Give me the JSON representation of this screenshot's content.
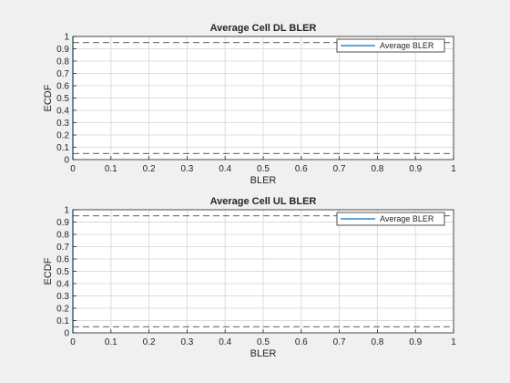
{
  "chart_data": [
    {
      "type": "line",
      "title": "Average Cell DL BLER",
      "xlabel": "BLER",
      "ylabel": "ECDF",
      "xlim": [
        0,
        1
      ],
      "ylim": [
        0,
        1
      ],
      "xticks": [
        "0",
        "0.1",
        "0.2",
        "0.3",
        "0.4",
        "0.5",
        "0.6",
        "0.7",
        "0.8",
        "0.9",
        "1"
      ],
      "yticks": [
        "0",
        "0.1",
        "0.2",
        "0.3",
        "0.4",
        "0.5",
        "0.6",
        "0.7",
        "0.8",
        "0.9",
        "1"
      ],
      "grid": true,
      "legend_position": "top-right",
      "series": [
        {
          "name": "Average BLER",
          "color": "#0072bd",
          "x": [
            0,
            0
          ],
          "y": [
            0,
            1
          ]
        }
      ],
      "reference_lines": [
        {
          "y": 0.05,
          "style": "dashed",
          "color": "#262626"
        },
        {
          "y": 0.95,
          "style": "dashed",
          "color": "#262626"
        }
      ]
    },
    {
      "type": "line",
      "title": "Average Cell UL BLER",
      "xlabel": "BLER",
      "ylabel": "ECDF",
      "xlim": [
        0,
        1
      ],
      "ylim": [
        0,
        1
      ],
      "xticks": [
        "0",
        "0.1",
        "0.2",
        "0.3",
        "0.4",
        "0.5",
        "0.6",
        "0.7",
        "0.8",
        "0.9",
        "1"
      ],
      "yticks": [
        "0",
        "0.1",
        "0.2",
        "0.3",
        "0.4",
        "0.5",
        "0.6",
        "0.7",
        "0.8",
        "0.9",
        "1"
      ],
      "grid": true,
      "legend_position": "top-right",
      "series": [
        {
          "name": "Average BLER",
          "color": "#0072bd",
          "x": [
            0,
            0
          ],
          "y": [
            0,
            1
          ]
        }
      ],
      "reference_lines": [
        {
          "y": 0.05,
          "style": "dashed",
          "color": "#262626"
        },
        {
          "y": 0.95,
          "style": "dashed",
          "color": "#262626"
        }
      ]
    }
  ]
}
